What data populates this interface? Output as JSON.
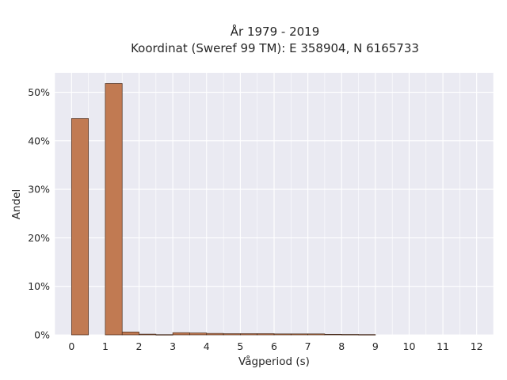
{
  "chart_data": {
    "type": "bar",
    "title": "År 1979 - 2019",
    "subtitle": "Koordinat (Sweref 99 TM): E 358904, N 6165733",
    "xlabel": "Vågperiod (s)",
    "ylabel": "Andel",
    "xlim": [
      -0.5,
      12.5
    ],
    "ylim": [
      0,
      54
    ],
    "x_ticks": [
      0,
      1,
      2,
      3,
      4,
      5,
      6,
      7,
      8,
      9,
      10,
      11,
      12
    ],
    "x_tick_labels": [
      "0",
      "1",
      "2",
      "3",
      "4",
      "5",
      "6",
      "7",
      "8",
      "9",
      "10",
      "11",
      "12"
    ],
    "y_ticks": [
      0,
      10,
      20,
      30,
      40,
      50
    ],
    "y_tick_labels": [
      "0%",
      "10%",
      "20%",
      "30%",
      "40%",
      "50%"
    ],
    "bin_width": 0.5,
    "bins": [
      {
        "start": 0.0,
        "value": 44.6
      },
      {
        "start": 1.0,
        "value": 51.8
      },
      {
        "start": 1.5,
        "value": 0.6
      },
      {
        "start": 2.0,
        "value": 0.15
      },
      {
        "start": 2.5,
        "value": 0.05
      },
      {
        "start": 3.0,
        "value": 0.45
      },
      {
        "start": 3.5,
        "value": 0.4
      },
      {
        "start": 4.0,
        "value": 0.3
      },
      {
        "start": 4.5,
        "value": 0.25
      },
      {
        "start": 5.0,
        "value": 0.25
      },
      {
        "start": 5.5,
        "value": 0.25
      },
      {
        "start": 6.0,
        "value": 0.2
      },
      {
        "start": 6.5,
        "value": 0.2
      },
      {
        "start": 7.0,
        "value": 0.2
      },
      {
        "start": 7.5,
        "value": 0.1
      },
      {
        "start": 8.0,
        "value": 0.08
      },
      {
        "start": 8.5,
        "value": 0.06
      }
    ],
    "grid": true,
    "colors": {
      "bar_fill": "#c17a52",
      "bar_edge": "#4a2e1e",
      "plot_bg": "#eaeaf2",
      "grid": "#ffffff"
    }
  }
}
